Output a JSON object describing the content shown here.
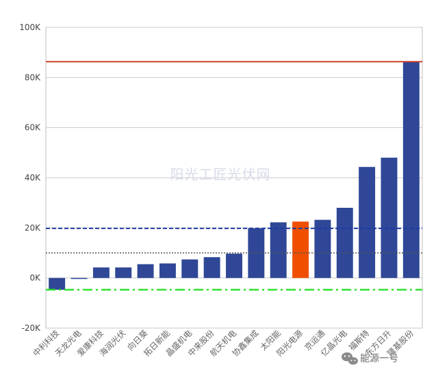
{
  "chart_data": {
    "type": "bar",
    "title": "",
    "xlabel": "",
    "ylabel": "",
    "ylim": [
      -20000,
      100000
    ],
    "yticks": [
      -20000,
      0,
      20000,
      40000,
      60000,
      80000,
      100000
    ],
    "ytick_labels": [
      "-20K",
      "0K",
      "20K",
      "40K",
      "60K",
      "80K",
      "100K"
    ],
    "grid": true,
    "categories": [
      "中利科技",
      "天龙光电",
      "爱康科技",
      "海润光伏",
      "向日葵",
      "拓日新能",
      "晶盛机电",
      "中来股份",
      "航天机电",
      "协鑫集成",
      "太阳能",
      "阳光电源",
      "京运通",
      "亿晶光电",
      "福斯特",
      "东方日升",
      "隆基股份"
    ],
    "values": [
      -4700,
      -400,
      4200,
      4200,
      5500,
      5800,
      7400,
      8300,
      9700,
      19800,
      22200,
      22500,
      23200,
      28000,
      44300,
      48000,
      86300
    ],
    "highlight_category": "阳光电源",
    "colors": {
      "bar": "#2f4796",
      "highlight": "#f04f00",
      "grid": "#c9c9c9",
      "axis": "#bdbdbd"
    },
    "reference_lines": [
      {
        "value": 86300,
        "style": "solid",
        "color": "#d0402b"
      },
      {
        "value": 19800,
        "style": "dashed",
        "color": "#1e3aa5"
      },
      {
        "value": 10000,
        "style": "dotted",
        "color": "#555555"
      },
      {
        "value": -4700,
        "style": "dash-dot",
        "color": "#2ee02e"
      }
    ]
  },
  "watermark": {
    "text": "阳光工匠光伏网"
  },
  "branding": {
    "text": "能源一号",
    "icon": "wechat-icon"
  }
}
